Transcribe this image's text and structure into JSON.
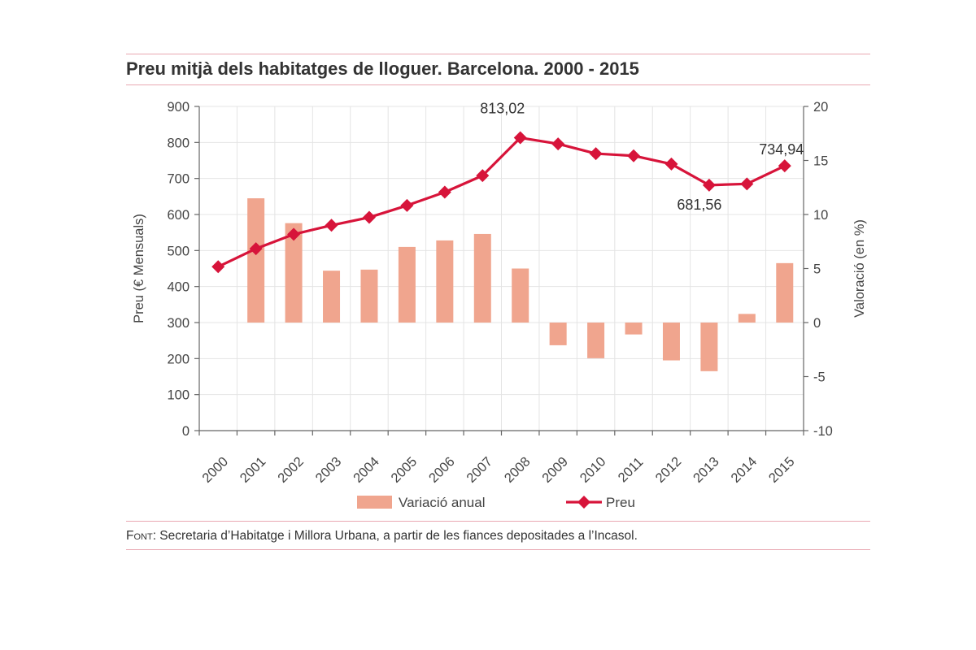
{
  "header": {
    "title": "Preu mitjà dels habitatges de lloguer. Barcelona. 2000 - 2015"
  },
  "footer": {
    "source_label": "Font",
    "source_text": ": Secretaria d’Habitatge i Millora Urbana, a partir de les fiances depositades a l’Incasol."
  },
  "colors": {
    "bar": "#f0a58e",
    "line": "#d7143a",
    "grid": "#e4e4e4",
    "rule": "#e9a8b2"
  },
  "chart_data": {
    "type": "bar+line",
    "categories": [
      "2000",
      "2001",
      "2002",
      "2003",
      "2004",
      "2005",
      "2006",
      "2007",
      "2008",
      "2009",
      "2010",
      "2011",
      "2012",
      "2013",
      "2014",
      "2015"
    ],
    "series": [
      {
        "name": "Variació anual",
        "type": "bar",
        "axis": "right",
        "values": [
          null,
          11.5,
          9.2,
          4.8,
          4.9,
          7.0,
          7.6,
          8.2,
          5.0,
          -2.1,
          -3.3,
          -1.1,
          -3.5,
          -4.5,
          0.8,
          5.5
        ]
      },
      {
        "name": "Preu",
        "type": "line",
        "axis": "left",
        "values": [
          455,
          505,
          545,
          570,
          592,
          625,
          662,
          708,
          813.02,
          796,
          769,
          763,
          740,
          681.56,
          685,
          734.94
        ]
      }
    ],
    "annotations": [
      {
        "category": "2008",
        "text": "813,02"
      },
      {
        "category": "2013",
        "text": "681,56"
      },
      {
        "category": "2015",
        "text": "734,94"
      }
    ],
    "yaxis_left": {
      "label": "Preu (€ Mensuals)",
      "ylim": [
        0,
        900
      ],
      "ticks": [
        "0",
        "100",
        "200",
        "300",
        "400",
        "500",
        "600",
        "700",
        "800",
        "900"
      ]
    },
    "yaxis_right": {
      "label": "Valoració (en %)",
      "ylim": [
        -10,
        20
      ],
      "ticks": [
        "-10",
        "-5",
        "0",
        "5",
        "10",
        "15",
        "20"
      ]
    },
    "grid": true,
    "legend_position": "bottom"
  }
}
